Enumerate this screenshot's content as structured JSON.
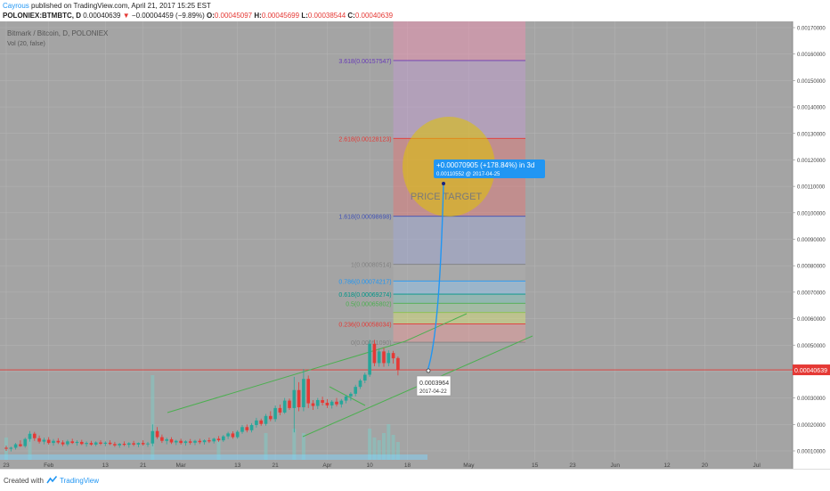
{
  "header": {
    "author": "Cayrous",
    "published": "published on TradingView.com, April 21, 2017 15:25 EST",
    "symbol": "POLONIEX:BTMBTC, D",
    "last": "0.00040639",
    "change": "−0.00004459 (−9.89%)",
    "o_label": "O:",
    "o_val": "0.00045097",
    "h_label": "H:",
    "h_val": "0.00045699",
    "l_label": "L:",
    "l_val": "0.00038544",
    "c_label": "C:",
    "c_val": "0.00040639"
  },
  "chart_title": "Bitmark / Bitcoin, D, POLONIEX",
  "volume_label": "Vol (20, false)",
  "annotations": {
    "price_target": "PRICE TARGET",
    "projection": "+0.00070905 (+178.84%) in 3d",
    "projection_sub": "0.00110552  @ 2017-04-25",
    "marker_price": "0.0003964",
    "marker_date": "2017-04-22"
  },
  "footer": {
    "created_with": "Created with",
    "brand": "TradingView"
  },
  "colors": {
    "up": "#26a69a",
    "down": "#e53935",
    "accent": "#2196f3",
    "pane": "#a4a4a4"
  },
  "chart_data": {
    "type": "candlestick",
    "title": "Bitmark / Bitcoin, D, POLONIEX",
    "xlabel": "",
    "ylabel": "",
    "ylim": [
      5e-05,
      0.00175
    ],
    "y_ticks": [
      "0.00170000",
      "0.00160000",
      "0.00150000",
      "0.00140000",
      "0.00130000",
      "0.00120000",
      "0.00110000",
      "0.00100000",
      "0.00090000",
      "0.00080000",
      "0.00070000",
      "0.00060000",
      "0.00050000",
      "0.00040000",
      "0.00030000",
      "0.00020000",
      "0.00010000"
    ],
    "y_tick_values": [
      0.0017,
      0.0016,
      0.0015,
      0.0014,
      0.0013,
      0.0012,
      0.0011,
      0.001,
      0.0009,
      0.0008,
      0.0007,
      0.0006,
      0.0005,
      0.0004,
      0.0003,
      0.0002,
      0.0001
    ],
    "last_price": {
      "label": "0.00040639",
      "value": 0.00040639
    },
    "x_ticks": [
      {
        "label": "23",
        "day": 0
      },
      {
        "label": "Feb",
        "day": 9
      },
      {
        "label": "13",
        "day": 21
      },
      {
        "label": "21",
        "day": 29
      },
      {
        "label": "Mar",
        "day": 37
      },
      {
        "label": "13",
        "day": 49
      },
      {
        "label": "21",
        "day": 57
      },
      {
        "label": "Apr",
        "day": 68
      },
      {
        "label": "10",
        "day": 77
      },
      {
        "label": "18",
        "day": 85
      },
      {
        "label": "May",
        "day": 98
      },
      {
        "label": "15",
        "day": 112
      },
      {
        "label": "23",
        "day": 120
      },
      {
        "label": "Jun",
        "day": 129
      },
      {
        "label": "12",
        "day": 140
      },
      {
        "label": "20",
        "day": 148
      },
      {
        "label": "Jul",
        "day": 159
      }
    ],
    "fibonacci": [
      {
        "ratio": "3.618",
        "label": "3.618(0.00157547)",
        "value": 0.00157547,
        "color": "#673ab7"
      },
      {
        "ratio": "2.618",
        "label": "2.618(0.00128123)",
        "value": 0.00128123,
        "color": "#e53935"
      },
      {
        "ratio": "1.618",
        "label": "1.618(0.00098698)",
        "value": 0.00098698,
        "color": "#3f51b5"
      },
      {
        "ratio": "1",
        "label": "1(0.00080514)",
        "value": 0.00080514,
        "color": "#808080"
      },
      {
        "ratio": "0.786",
        "label": "0.786(0.00074217)",
        "value": 0.00074217,
        "color": "#2196f3"
      },
      {
        "ratio": "0.618",
        "label": "0.618(0.00069274)",
        "value": 0.00069274,
        "color": "#009688"
      },
      {
        "ratio": "0.5",
        "label": "0.5(0.00065802)",
        "value": 0.00065802,
        "color": "#4caf50"
      },
      {
        "ratio": "0.382",
        "label": "",
        "value": 0.0006233,
        "color": "#8bc34a"
      },
      {
        "ratio": "0.236",
        "label": "0.236(0.00058034)",
        "value": 0.00058034,
        "color": "#e53935"
      },
      {
        "ratio": "0",
        "label": "0(0.00051090)",
        "value": 0.0005109,
        "color": "#808080"
      }
    ],
    "fib_range_days": [
      82,
      110
    ],
    "candles": [
      {
        "d": 0,
        "o": 0.000112,
        "h": 0.00012,
        "l": 0.0001,
        "c": 0.000108
      },
      {
        "d": 1,
        "o": 0.000108,
        "h": 0.000116,
        "l": 9.8e-05,
        "c": 0.000112
      },
      {
        "d": 2,
        "o": 0.000112,
        "h": 0.00013,
        "l": 0.000105,
        "c": 0.000125
      },
      {
        "d": 3,
        "o": 0.000125,
        "h": 0.00014,
        "l": 0.000115,
        "c": 0.000118
      },
      {
        "d": 4,
        "o": 0.000118,
        "h": 0.00015,
        "l": 0.000112,
        "c": 0.000145
      },
      {
        "d": 5,
        "o": 0.000145,
        "h": 0.000175,
        "l": 0.000135,
        "c": 0.000165
      },
      {
        "d": 6,
        "o": 0.000165,
        "h": 0.000172,
        "l": 0.000138,
        "c": 0.000148
      },
      {
        "d": 7,
        "o": 0.000148,
        "h": 0.000158,
        "l": 0.000128,
        "c": 0.000135
      },
      {
        "d": 8,
        "o": 0.000135,
        "h": 0.00015,
        "l": 0.000125,
        "c": 0.000142
      },
      {
        "d": 9,
        "o": 0.000142,
        "h": 0.000152,
        "l": 0.000124,
        "c": 0.00013
      },
      {
        "d": 10,
        "o": 0.00013,
        "h": 0.000145,
        "l": 0.00012,
        "c": 0.000138
      },
      {
        "d": 11,
        "o": 0.000138,
        "h": 0.000148,
        "l": 0.000126,
        "c": 0.000132
      },
      {
        "d": 12,
        "o": 0.000132,
        "h": 0.00014,
        "l": 0.000118,
        "c": 0.000125
      },
      {
        "d": 13,
        "o": 0.000125,
        "h": 0.000142,
        "l": 0.000118,
        "c": 0.000136
      },
      {
        "d": 14,
        "o": 0.000136,
        "h": 0.000146,
        "l": 0.000126,
        "c": 0.00013
      },
      {
        "d": 15,
        "o": 0.00013,
        "h": 0.00014,
        "l": 0.00012,
        "c": 0.000134
      },
      {
        "d": 16,
        "o": 0.000134,
        "h": 0.000142,
        "l": 0.000122,
        "c": 0.000126
      },
      {
        "d": 17,
        "o": 0.000126,
        "h": 0.000136,
        "l": 0.000116,
        "c": 0.00013
      },
      {
        "d": 18,
        "o": 0.00013,
        "h": 0.000138,
        "l": 0.00012,
        "c": 0.000124
      },
      {
        "d": 19,
        "o": 0.000124,
        "h": 0.000136,
        "l": 0.000118,
        "c": 0.000132
      },
      {
        "d": 20,
        "o": 0.000132,
        "h": 0.00014,
        "l": 0.000122,
        "c": 0.000127
      },
      {
        "d": 21,
        "o": 0.000127,
        "h": 0.000136,
        "l": 0.000118,
        "c": 0.000131
      },
      {
        "d": 22,
        "o": 0.000131,
        "h": 0.00014,
        "l": 0.000122,
        "c": 0.000126
      },
      {
        "d": 23,
        "o": 0.000126,
        "h": 0.000134,
        "l": 0.000115,
        "c": 0.000121
      },
      {
        "d": 24,
        "o": 0.000121,
        "h": 0.00013,
        "l": 0.000112,
        "c": 0.000127
      },
      {
        "d": 25,
        "o": 0.000127,
        "h": 0.000136,
        "l": 0.000118,
        "c": 0.000123
      },
      {
        "d": 26,
        "o": 0.000123,
        "h": 0.000133,
        "l": 0.000112,
        "c": 0.000129
      },
      {
        "d": 27,
        "o": 0.000129,
        "h": 0.000138,
        "l": 0.000118,
        "c": 0.000124
      },
      {
        "d": 28,
        "o": 0.000124,
        "h": 0.000132,
        "l": 0.000114,
        "c": 0.00013
      },
      {
        "d": 29,
        "o": 0.00013,
        "h": 0.00014,
        "l": 0.00012,
        "c": 0.000125
      },
      {
        "d": 30,
        "o": 0.000125,
        "h": 0.000134,
        "l": 0.000115,
        "c": 0.000128
      },
      {
        "d": 31,
        "o": 0.000128,
        "h": 0.0002,
        "l": 0.000118,
        "c": 0.000175
      },
      {
        "d": 32,
        "o": 0.000175,
        "h": 0.00019,
        "l": 0.000145,
        "c": 0.000152
      },
      {
        "d": 33,
        "o": 0.000152,
        "h": 0.000162,
        "l": 0.00013,
        "c": 0.000138
      },
      {
        "d": 34,
        "o": 0.000138,
        "h": 0.00015,
        "l": 0.000125,
        "c": 0.000144
      },
      {
        "d": 35,
        "o": 0.000144,
        "h": 0.000152,
        "l": 0.000126,
        "c": 0.000132
      },
      {
        "d": 36,
        "o": 0.000132,
        "h": 0.000142,
        "l": 0.000122,
        "c": 0.000138
      },
      {
        "d": 37,
        "o": 0.000138,
        "h": 0.000146,
        "l": 0.000124,
        "c": 0.00013
      },
      {
        "d": 38,
        "o": 0.00013,
        "h": 0.00014,
        "l": 0.00012,
        "c": 0.000136
      },
      {
        "d": 39,
        "o": 0.000136,
        "h": 0.000145,
        "l": 0.000124,
        "c": 0.000131
      },
      {
        "d": 40,
        "o": 0.000131,
        "h": 0.000142,
        "l": 0.000122,
        "c": 0.000138
      },
      {
        "d": 41,
        "o": 0.000138,
        "h": 0.000146,
        "l": 0.000126,
        "c": 0.000133
      },
      {
        "d": 42,
        "o": 0.000133,
        "h": 0.000144,
        "l": 0.000124,
        "c": 0.00014
      },
      {
        "d": 43,
        "o": 0.00014,
        "h": 0.00015,
        "l": 0.00013,
        "c": 0.000136
      },
      {
        "d": 44,
        "o": 0.000136,
        "h": 0.00015,
        "l": 0.000128,
        "c": 0.000146
      },
      {
        "d": 45,
        "o": 0.000146,
        "h": 0.000156,
        "l": 0.000134,
        "c": 0.00014
      },
      {
        "d": 46,
        "o": 0.00014,
        "h": 0.00016,
        "l": 0.000134,
        "c": 0.000155
      },
      {
        "d": 47,
        "o": 0.000155,
        "h": 0.000172,
        "l": 0.000145,
        "c": 0.000166
      },
      {
        "d": 48,
        "o": 0.000166,
        "h": 0.000174,
        "l": 0.000146,
        "c": 0.000152
      },
      {
        "d": 49,
        "o": 0.000152,
        "h": 0.000178,
        "l": 0.000146,
        "c": 0.000172
      },
      {
        "d": 50,
        "o": 0.000172,
        "h": 0.000198,
        "l": 0.000165,
        "c": 0.00019
      },
      {
        "d": 51,
        "o": 0.00019,
        "h": 0.0002,
        "l": 0.00017,
        "c": 0.000178
      },
      {
        "d": 52,
        "o": 0.000178,
        "h": 0.000205,
        "l": 0.00017,
        "c": 0.000198
      },
      {
        "d": 53,
        "o": 0.000198,
        "h": 0.000225,
        "l": 0.000188,
        "c": 0.000215
      },
      {
        "d": 54,
        "o": 0.000215,
        "h": 0.000222,
        "l": 0.000195,
        "c": 0.000202
      },
      {
        "d": 55,
        "o": 0.000202,
        "h": 0.00024,
        "l": 0.000195,
        "c": 0.000232
      },
      {
        "d": 56,
        "o": 0.000232,
        "h": 0.00025,
        "l": 0.000212,
        "c": 0.00022
      },
      {
        "d": 57,
        "o": 0.00022,
        "h": 0.000272,
        "l": 0.00021,
        "c": 0.000262
      },
      {
        "d": 58,
        "o": 0.000262,
        "h": 0.000275,
        "l": 0.000235,
        "c": 0.000245
      },
      {
        "d": 59,
        "o": 0.000245,
        "h": 0.0003,
        "l": 0.00024,
        "c": 0.00029
      },
      {
        "d": 60,
        "o": 0.00029,
        "h": 0.000298,
        "l": 0.000255,
        "c": 0.000262
      },
      {
        "d": 61,
        "o": 0.000262,
        "h": 0.00038,
        "l": 0.00017,
        "c": 0.00033
      },
      {
        "d": 62,
        "o": 0.00033,
        "h": 0.00036,
        "l": 0.00025,
        "c": 0.000265
      },
      {
        "d": 63,
        "o": 0.000265,
        "h": 0.00041,
        "l": 0.00025,
        "c": 0.000372
      },
      {
        "d": 64,
        "o": 0.000372,
        "h": 0.000385,
        "l": 0.000262,
        "c": 0.00028
      },
      {
        "d": 65,
        "o": 0.00028,
        "h": 0.000292,
        "l": 0.000255,
        "c": 0.00027
      },
      {
        "d": 66,
        "o": 0.00027,
        "h": 0.0003,
        "l": 0.000258,
        "c": 0.000292
      },
      {
        "d": 67,
        "o": 0.000292,
        "h": 0.000305,
        "l": 0.000272,
        "c": 0.000282
      },
      {
        "d": 68,
        "o": 0.000282,
        "h": 0.000296,
        "l": 0.000262,
        "c": 0.000272
      },
      {
        "d": 69,
        "o": 0.000272,
        "h": 0.000292,
        "l": 0.00026,
        "c": 0.000286
      },
      {
        "d": 70,
        "o": 0.000286,
        "h": 0.0003,
        "l": 0.000268,
        "c": 0.000276
      },
      {
        "d": 71,
        "o": 0.000276,
        "h": 0.000296,
        "l": 0.000264,
        "c": 0.00029
      },
      {
        "d": 72,
        "o": 0.00029,
        "h": 0.000312,
        "l": 0.00028,
        "c": 0.000306
      },
      {
        "d": 73,
        "o": 0.000306,
        "h": 0.000322,
        "l": 0.00029,
        "c": 0.000316
      },
      {
        "d": 74,
        "o": 0.000316,
        "h": 0.00035,
        "l": 0.000306,
        "c": 0.000342
      },
      {
        "d": 75,
        "o": 0.000342,
        "h": 0.000372,
        "l": 0.000334,
        "c": 0.000366
      },
      {
        "d": 76,
        "o": 0.000366,
        "h": 0.000396,
        "l": 0.000356,
        "c": 0.000388
      },
      {
        "d": 77,
        "o": 0.000388,
        "h": 0.00052,
        "l": 0.00038,
        "c": 0.000505
      },
      {
        "d": 78,
        "o": 0.000505,
        "h": 0.00052,
        "l": 0.00042,
        "c": 0.000432
      },
      {
        "d": 79,
        "o": 0.000432,
        "h": 0.000488,
        "l": 0.000418,
        "c": 0.000476
      },
      {
        "d": 80,
        "o": 0.000476,
        "h": 0.00049,
        "l": 0.000418,
        "c": 0.000432
      },
      {
        "d": 81,
        "o": 0.000432,
        "h": 0.00048,
        "l": 0.00042,
        "c": 0.00047
      },
      {
        "d": 82,
        "o": 0.00047,
        "h": 0.000478,
        "l": 0.00043,
        "c": 0.00045
      },
      {
        "d": 83,
        "o": 0.00045097,
        "h": 0.00045699,
        "l": 0.00038544,
        "c": 0.00040639
      }
    ],
    "volume_days": [
      0,
      5,
      31,
      45,
      55,
      61,
      63,
      77,
      78,
      79,
      80,
      81,
      82,
      83
    ],
    "volume_values": [
      0.25,
      0.3,
      0.95,
      0.22,
      0.3,
      0.35,
      0.3,
      0.35,
      0.25,
      0.22,
      0.3,
      0.4,
      0.28,
      0.2
    ]
  }
}
